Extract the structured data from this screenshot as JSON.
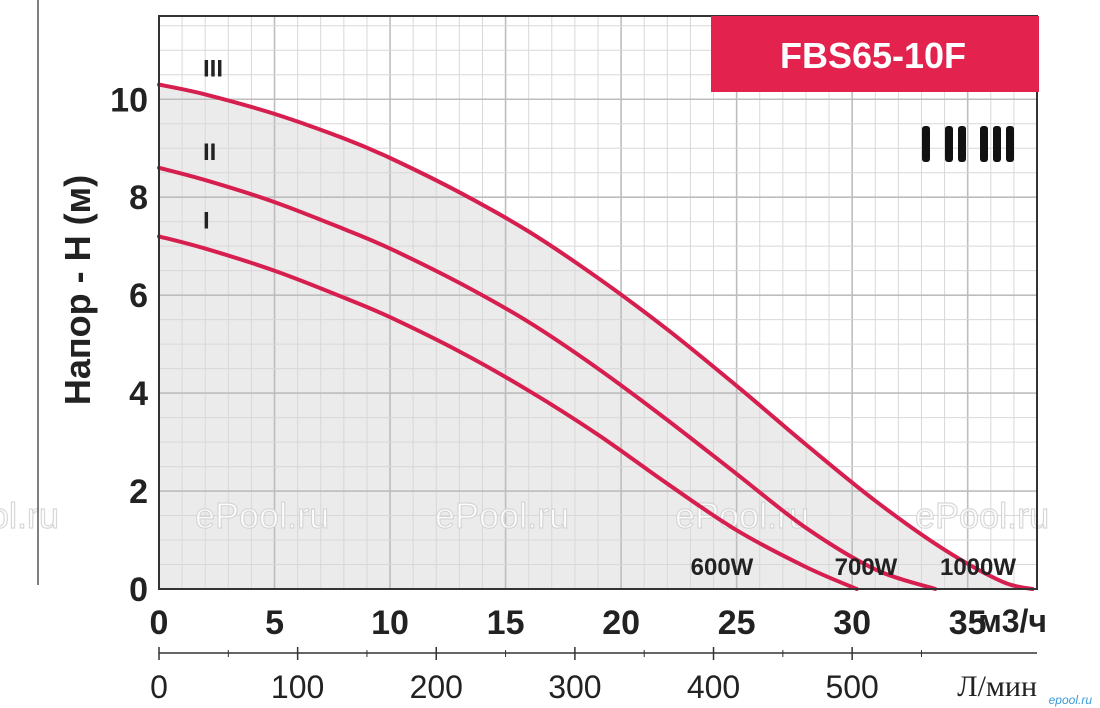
{
  "chart_data": {
    "type": "line",
    "title": "FBS65-10F",
    "ylabel": "Напор - H (м)",
    "xlabel": "м3/ч",
    "x2label": "Л/мин",
    "xlim": [
      0,
      38
    ],
    "ylim": [
      0,
      11.7
    ],
    "x_ticks": [
      "0",
      "5",
      "10",
      "15",
      "20",
      "25",
      "30",
      "35"
    ],
    "x_tick_values": [
      0,
      5,
      10,
      15,
      20,
      25,
      30,
      35
    ],
    "y_ticks": [
      "0",
      "2",
      "4",
      "6",
      "8",
      "10"
    ],
    "y_tick_values": [
      0,
      2,
      4,
      6,
      8,
      10
    ],
    "x2_ticks": [
      "0",
      "100",
      "200",
      "300",
      "400",
      "500"
    ],
    "x2_tick_values": [
      0,
      100,
      200,
      300,
      400,
      500
    ],
    "grid": true,
    "series": [
      {
        "name": "I",
        "power": "600W",
        "color": "#d61f4f",
        "x": [
          0,
          2,
          5,
          8,
          10,
          13,
          16,
          19,
          22,
          25,
          28,
          30.2
        ],
        "y": [
          7.2,
          6.95,
          6.5,
          5.95,
          5.55,
          4.85,
          4.05,
          3.15,
          2.15,
          1.2,
          0.45,
          0
        ]
      },
      {
        "name": "II",
        "power": "700W",
        "color": "#d61f4f",
        "x": [
          0,
          2,
          5,
          8,
          10,
          13,
          16,
          19,
          22,
          25,
          28,
          31,
          33.6
        ],
        "y": [
          8.6,
          8.35,
          7.9,
          7.35,
          6.95,
          6.25,
          5.45,
          4.5,
          3.45,
          2.35,
          1.25,
          0.4,
          0
        ]
      },
      {
        "name": "III",
        "power": "1000W",
        "color": "#d61f4f",
        "x": [
          0,
          2,
          5,
          8,
          10,
          13,
          16,
          19,
          22,
          25,
          28,
          31,
          34,
          36.5,
          37.8
        ],
        "y": [
          10.3,
          10.1,
          9.7,
          9.2,
          8.8,
          8.1,
          7.3,
          6.35,
          5.3,
          4.15,
          2.95,
          1.8,
          0.8,
          0.15,
          0
        ]
      }
    ],
    "legend_marks": [
      "I",
      "II",
      "III"
    ]
  },
  "watermarks": [
    "Pool.ru",
    "ePool.ru",
    "ePool.ru",
    "ePool.ru",
    "ePool.ru"
  ],
  "corner_mark": "epool.ru",
  "colors": {
    "accent": "#e3224e",
    "curve": "#d61f4f",
    "fill": "#ebebeb",
    "grid": "#cfcfcf"
  }
}
